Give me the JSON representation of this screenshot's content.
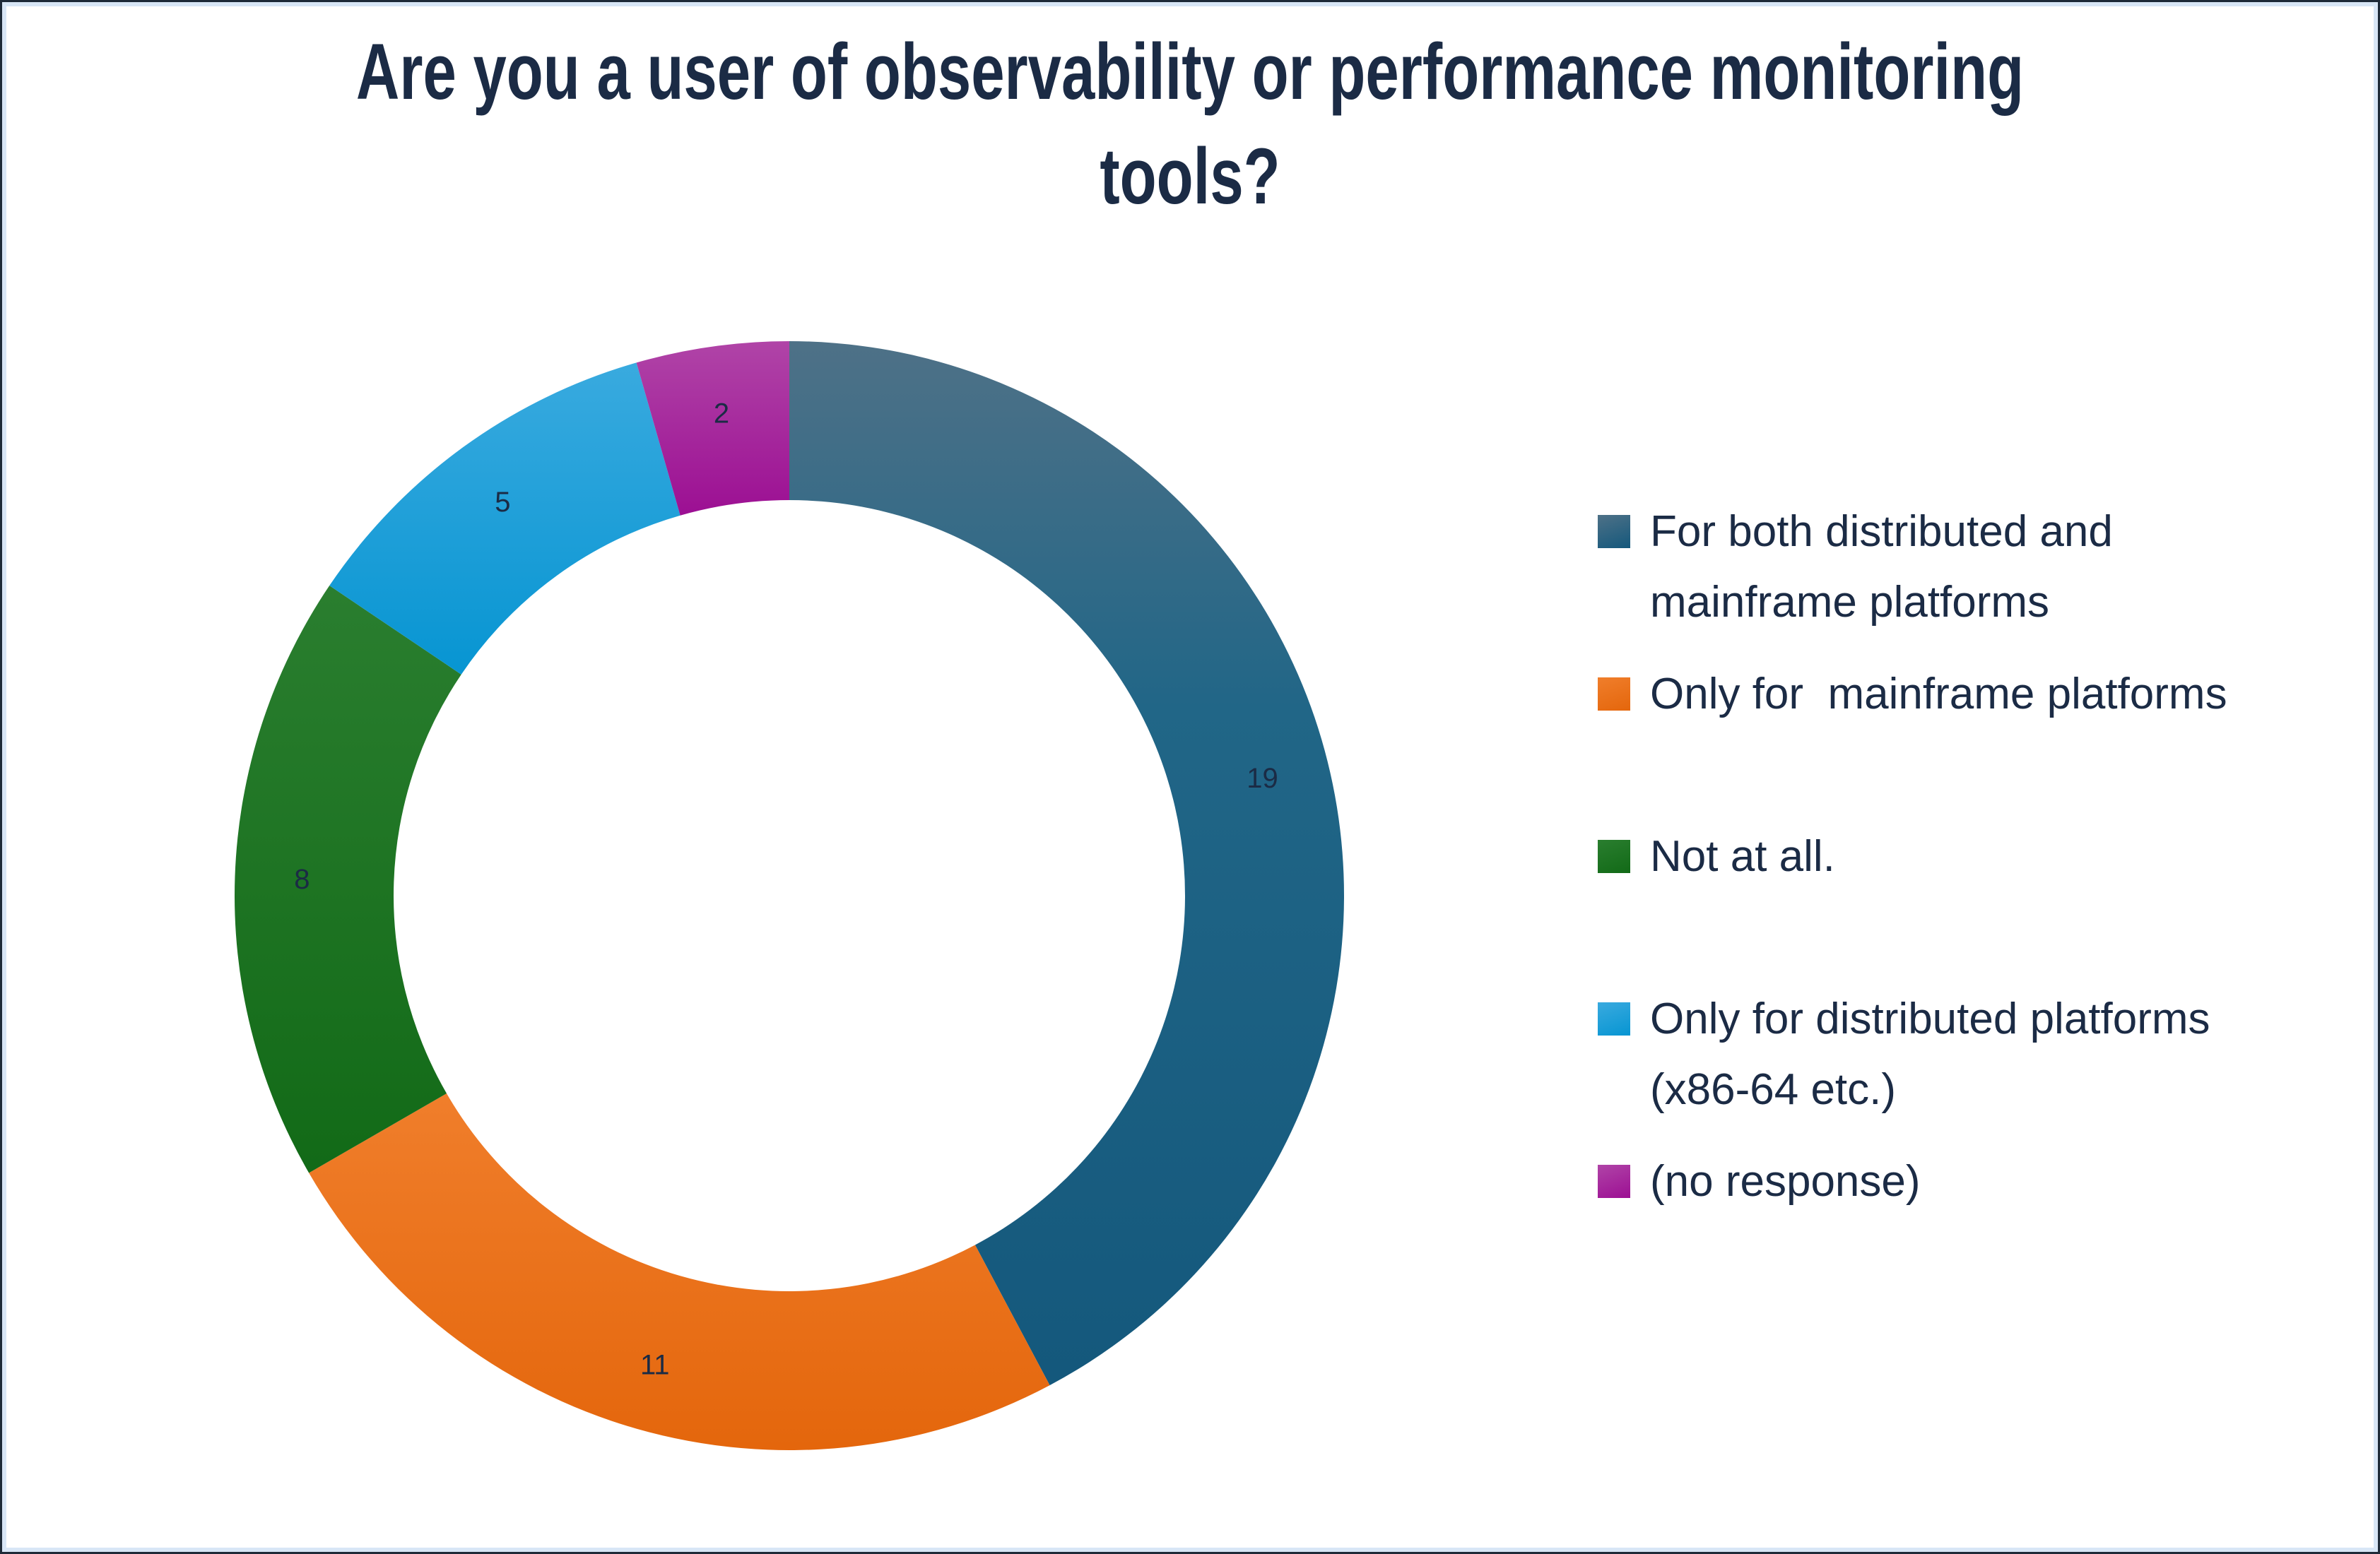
{
  "page": {
    "background": "#ffffff",
    "frame_outer_color": "#1e2a38",
    "frame_inner_color": "#d8e6f6"
  },
  "title": "Are you a user of observability or performance monitoring\ntools?",
  "title_color": "#1b2b45",
  "chart_data": {
    "type": "pie",
    "subtype": "donut",
    "title": "Are you a user of observability or performance monitoring tools?",
    "categories": [
      "For both distributed and mainframe platforms",
      "Only for  mainframe platforms",
      "Not at all.",
      "Only for distributed platforms (x86-64 etc.)",
      "(no response)"
    ],
    "values": [
      19,
      11,
      8,
      5,
      2
    ],
    "total": 45,
    "start_angle": "12 o'clock",
    "direction": "clockwise",
    "donut_hole_ratio": 0.71,
    "data_label_color": "#1b2b45",
    "legend_position": "right",
    "grid": false,
    "slice_gradients": [
      {
        "stops": [
          {
            "offset": "0%",
            "color": "#4e7187"
          },
          {
            "offset": "35%",
            "color": "#216687"
          },
          {
            "offset": "100%",
            "color": "#14587c"
          }
        ]
      },
      {
        "stops": [
          {
            "offset": "0%",
            "color": "#f07e2b"
          },
          {
            "offset": "100%",
            "color": "#e4660c"
          }
        ]
      },
      {
        "stops": [
          {
            "offset": "0%",
            "color": "#2a7e2f"
          },
          {
            "offset": "100%",
            "color": "#126a17"
          }
        ]
      },
      {
        "stops": [
          {
            "offset": "0%",
            "color": "#39aadf"
          },
          {
            "offset": "100%",
            "color": "#0795d2"
          }
        ]
      },
      {
        "stops": [
          {
            "offset": "0%",
            "color": "#b044a7"
          },
          {
            "offset": "100%",
            "color": "#9c0f93"
          }
        ]
      }
    ]
  },
  "legend": {
    "text_color": "#1b2b45",
    "entries": [
      {
        "label": "For both distributed and\nmainframe platforms"
      },
      {
        "label": "Only for  mainframe platforms"
      },
      {
        "label": "Not at all."
      },
      {
        "label": "Only for distributed platforms\n(x86-64 etc.)"
      },
      {
        "label": "(no response)"
      }
    ]
  }
}
